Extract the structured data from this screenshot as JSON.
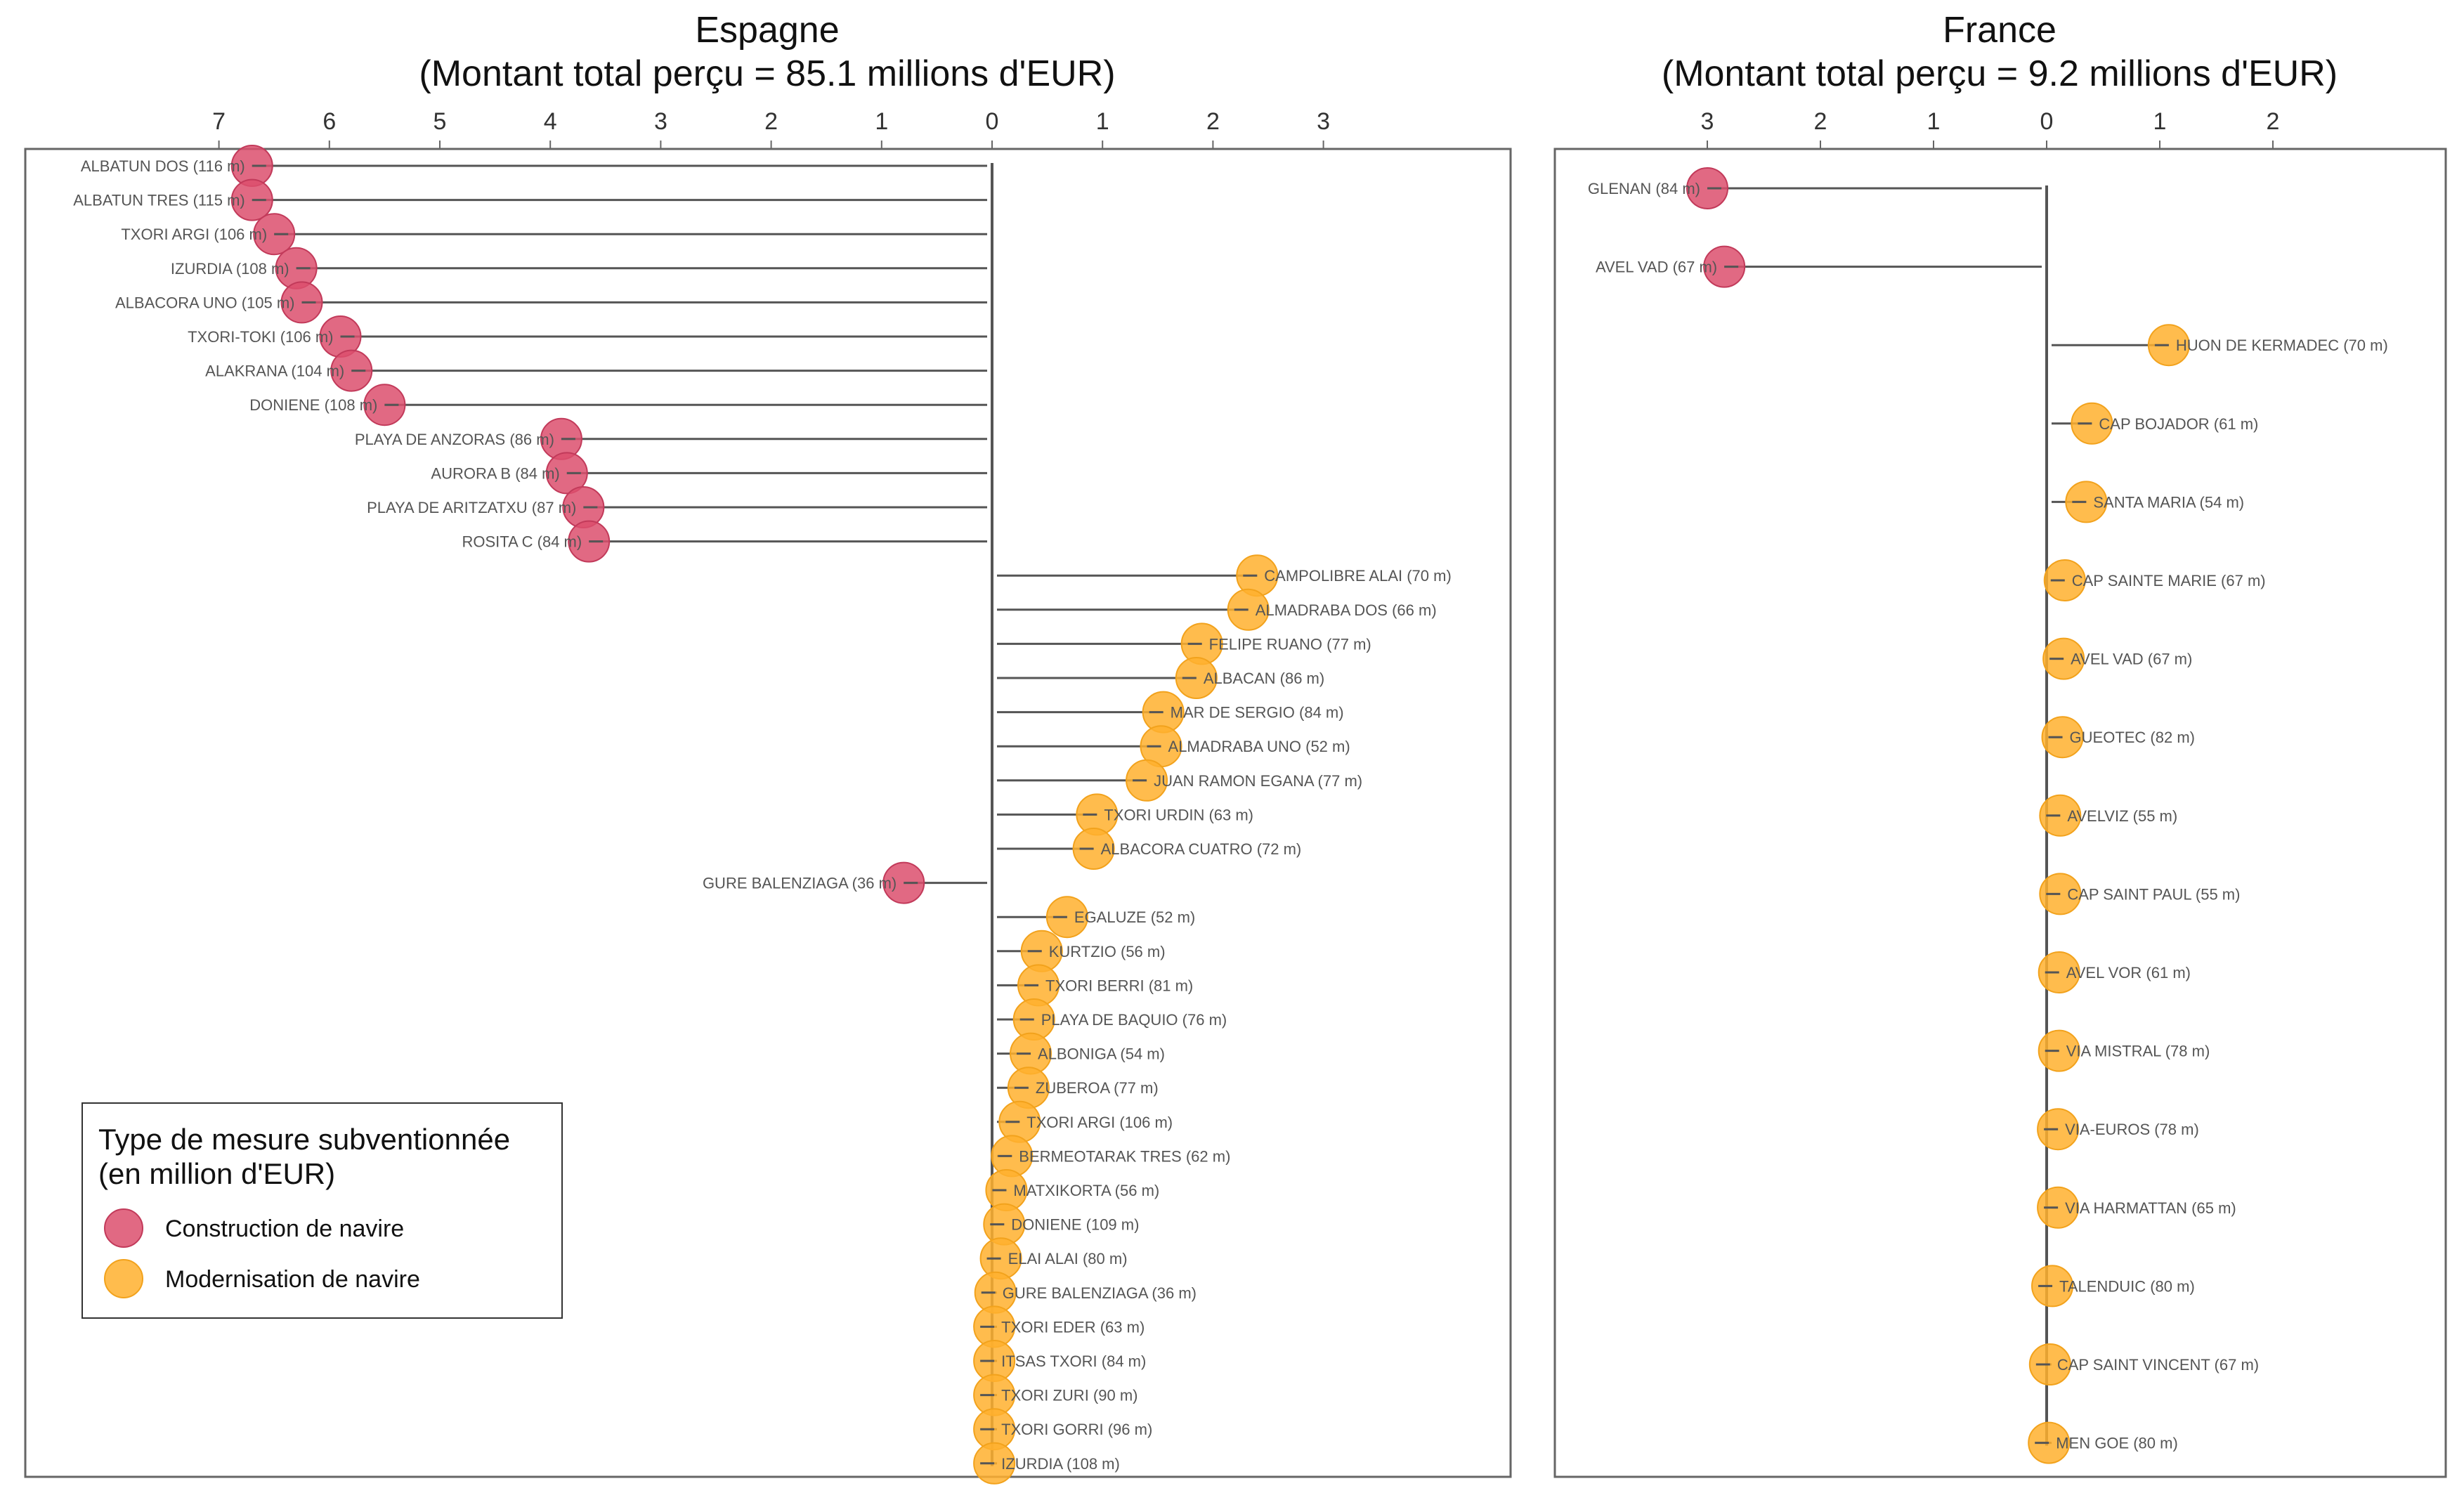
{
  "colors": {
    "construction": "#DC4F6D",
    "modernisation": "#FFB02E",
    "stem": "#555555",
    "frame": "#666666"
  },
  "legend": {
    "title_line1": "Type de mesure subventionnée",
    "title_line2": "(en million d'EUR)",
    "items": [
      {
        "label": "Construction de navire",
        "type": "construction"
      },
      {
        "label": "Modernisation de navire",
        "type": "modernisation"
      }
    ]
  },
  "chart_data": [
    {
      "type": "lollipop",
      "title_line1": "Espagne",
      "title_line2": "(Montant total perçu = 85.1 millions d'EUR)",
      "axis_note": "Construction values plotted to the left of 0, modernisation values to the right",
      "ticks_left": [
        7,
        6,
        5,
        4,
        3,
        2,
        1
      ],
      "ticks_right": [
        0,
        1,
        2,
        3
      ],
      "xlim_left": 7.3,
      "xlim_right": 4.7,
      "vessels": [
        {
          "label": "ALBATUN DOS (116 m)",
          "type": "construction",
          "value": 6.7
        },
        {
          "label": "ALBATUN TRES (115 m)",
          "type": "construction",
          "value": 6.7
        },
        {
          "label": "TXORI ARGI (106 m)",
          "type": "construction",
          "value": 6.5
        },
        {
          "label": "IZURDIA (108 m)",
          "type": "construction",
          "value": 6.3
        },
        {
          "label": "ALBACORA UNO (105 m)",
          "type": "construction",
          "value": 6.25
        },
        {
          "label": "TXORI-TOKI (106 m)",
          "type": "construction",
          "value": 5.9
        },
        {
          "label": "ALAKRANA (104 m)",
          "type": "construction",
          "value": 5.8
        },
        {
          "label": "DONIENE (108 m)",
          "type": "construction",
          "value": 5.5
        },
        {
          "label": "PLAYA DE ANZORAS (86 m)",
          "type": "construction",
          "value": 3.9
        },
        {
          "label": "AURORA B (84 m)",
          "type": "construction",
          "value": 3.85
        },
        {
          "label": "PLAYA DE ARITZATXU (87 m)",
          "type": "construction",
          "value": 3.7
        },
        {
          "label": "ROSITA C (84 m)",
          "type": "construction",
          "value": 3.65
        },
        {
          "label": "CAMPOLIBRE ALAI (70 m)",
          "type": "modernisation",
          "value": 2.4
        },
        {
          "label": "ALMADRABA DOS (66 m)",
          "type": "modernisation",
          "value": 2.32
        },
        {
          "label": "FELIPE RUANO (77 m)",
          "type": "modernisation",
          "value": 1.9
        },
        {
          "label": "ALBACAN (86 m)",
          "type": "modernisation",
          "value": 1.85
        },
        {
          "label": "MAR DE SERGIO (84 m)",
          "type": "modernisation",
          "value": 1.55
        },
        {
          "label": "ALMADRABA UNO (52 m)",
          "type": "modernisation",
          "value": 1.53
        },
        {
          "label": "JUAN RAMON EGANA (77 m)",
          "type": "modernisation",
          "value": 1.4
        },
        {
          "label": "TXORI URDIN (63 m)",
          "type": "modernisation",
          "value": 0.95
        },
        {
          "label": "ALBACORA CUATRO (72 m)",
          "type": "modernisation",
          "value": 0.92
        },
        {
          "label": "GURE BALENZIAGA (36 m)",
          "type": "construction",
          "value": 0.8
        },
        {
          "label": "EGALUZE (52 m)",
          "type": "modernisation",
          "value": 0.68
        },
        {
          "label": "KURTZIO (56 m)",
          "type": "modernisation",
          "value": 0.45
        },
        {
          "label": "TXORI BERRI (81 m)",
          "type": "modernisation",
          "value": 0.42
        },
        {
          "label": "PLAYA DE BAQUIO (76 m)",
          "type": "modernisation",
          "value": 0.38
        },
        {
          "label": "ALBONIGA (54 m)",
          "type": "modernisation",
          "value": 0.35
        },
        {
          "label": "ZUBEROA (77 m)",
          "type": "modernisation",
          "value": 0.33
        },
        {
          "label": "TXORI ARGI (106 m)",
          "type": "modernisation",
          "value": 0.25
        },
        {
          "label": "BERMEOTARAK TRES (62 m)",
          "type": "modernisation",
          "value": 0.18
        },
        {
          "label": "MATXIKORTA (56 m)",
          "type": "modernisation",
          "value": 0.13
        },
        {
          "label": "DONIENE (109 m)",
          "type": "modernisation",
          "value": 0.11
        },
        {
          "label": "ELAI ALAI (80 m)",
          "type": "modernisation",
          "value": 0.08
        },
        {
          "label": "GURE BALENZIAGA (36 m)",
          "type": "modernisation",
          "value": 0.03
        },
        {
          "label": "TXORI EDER (63 m)",
          "type": "modernisation",
          "value": 0.02
        },
        {
          "label": "ITSAS TXORI (84 m)",
          "type": "modernisation",
          "value": 0.02
        },
        {
          "label": "TXORI ZURI (90 m)",
          "type": "modernisation",
          "value": 0.02
        },
        {
          "label": "TXORI GORRI (96 m)",
          "type": "modernisation",
          "value": 0.02
        },
        {
          "label": "IZURDIA (108 m)",
          "type": "modernisation",
          "value": 0.02
        }
      ]
    },
    {
      "type": "lollipop",
      "title_line1": "France",
      "title_line2": "(Montant total perçu = 9.2 millions d'EUR)",
      "axis_note": "Construction values plotted to the left of 0, modernisation values to the right",
      "ticks_left": [
        3,
        2,
        1
      ],
      "ticks_right": [
        0,
        1,
        2
      ],
      "xlim_left": 4.1,
      "xlim_right": 3.5,
      "vessels": [
        {
          "label": "GLENAN (84 m)",
          "type": "construction",
          "value": 3.0
        },
        {
          "label": "AVEL VAD (67 m)",
          "type": "construction",
          "value": 2.85
        },
        {
          "label": "HUON DE KERMADEC (70 m)",
          "type": "modernisation",
          "value": 1.08
        },
        {
          "label": "CAP BOJADOR (61 m)",
          "type": "modernisation",
          "value": 0.4
        },
        {
          "label": "SANTA MARIA (54 m)",
          "type": "modernisation",
          "value": 0.35
        },
        {
          "label": "CAP SAINTE MARIE (67 m)",
          "type": "modernisation",
          "value": 0.16
        },
        {
          "label": "AVEL VAD (67 m)",
          "type": "modernisation",
          "value": 0.15
        },
        {
          "label": "GUEOTEC (82 m)",
          "type": "modernisation",
          "value": 0.14
        },
        {
          "label": "AVELVIZ (55 m)",
          "type": "modernisation",
          "value": 0.12
        },
        {
          "label": "CAP SAINT PAUL (55 m)",
          "type": "modernisation",
          "value": 0.12
        },
        {
          "label": "AVEL VOR (61 m)",
          "type": "modernisation",
          "value": 0.11
        },
        {
          "label": "VIA MISTRAL (78 m)",
          "type": "modernisation",
          "value": 0.11
        },
        {
          "label": "VIA-EUROS (78 m)",
          "type": "modernisation",
          "value": 0.1
        },
        {
          "label": "VIA HARMATTAN (65 m)",
          "type": "modernisation",
          "value": 0.1
        },
        {
          "label": "TALENDUIC (80 m)",
          "type": "modernisation",
          "value": 0.05
        },
        {
          "label": "CAP SAINT VINCENT (67 m)",
          "type": "modernisation",
          "value": 0.03
        },
        {
          "label": "MEN GOE (80 m)",
          "type": "modernisation",
          "value": 0.02
        }
      ]
    }
  ]
}
